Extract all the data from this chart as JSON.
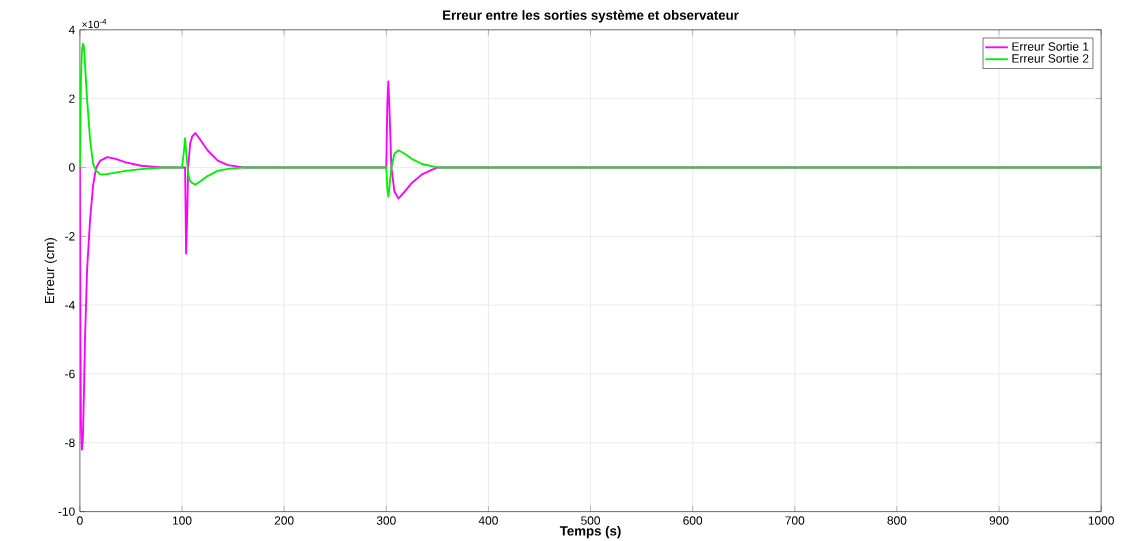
{
  "chart_data": {
    "type": "line",
    "title": "Erreur entre les sorties système et observateur",
    "xlabel": "Temps (s)",
    "ylabel": "Erreur (cm)",
    "annotations": [
      "×10$^{-4}$"
    ],
    "xlim": [
      0,
      1000
    ],
    "ylim": [
      -10,
      4
    ],
    "xticks": [
      0,
      100,
      200,
      300,
      400,
      500,
      600,
      700,
      800,
      900,
      1000
    ],
    "yticks": [
      -10,
      -8,
      -6,
      -4,
      -2,
      0,
      2,
      4
    ],
    "grid": true,
    "legend": "top right",
    "series": [
      {
        "name": "Erreur Sortie 1",
        "color": "#ff00ff",
        "x": [
          0,
          0.5,
          1,
          2,
          3,
          4,
          5,
          7,
          10,
          13,
          16,
          20,
          27,
          35,
          45,
          60,
          80,
          100,
          103,
          104,
          105,
          106,
          108,
          110,
          113,
          118,
          125,
          135,
          145,
          160,
          200,
          300,
          301,
          302,
          303,
          305,
          308,
          312,
          318,
          325,
          335,
          350,
          400,
          1000
        ],
        "values": [
          0,
          -5,
          -7.5,
          -8.2,
          -7.8,
          -6.5,
          -5,
          -3,
          -1.5,
          -0.5,
          0,
          0.2,
          0.3,
          0.25,
          0.15,
          0.05,
          0,
          0,
          0,
          -2.5,
          -1.5,
          0,
          0.7,
          0.9,
          1.0,
          0.8,
          0.5,
          0.2,
          0.07,
          0,
          0,
          0,
          1.8,
          2.5,
          1.8,
          0,
          -0.7,
          -0.9,
          -0.7,
          -0.45,
          -0.2,
          0,
          0,
          0
        ]
      },
      {
        "name": "Erreur Sortie 2",
        "color": "#00ee00",
        "x": [
          0,
          1,
          2,
          3,
          4,
          5,
          7,
          10,
          13,
          16,
          20,
          25,
          35,
          45,
          60,
          80,
          100,
          102,
          103,
          104,
          106,
          108,
          110,
          113,
          118,
          125,
          135,
          145,
          160,
          200,
          300,
          301,
          302,
          303,
          305,
          308,
          312,
          318,
          325,
          335,
          350,
          400,
          1000
        ],
        "values": [
          0,
          2.5,
          3.4,
          3.6,
          3.5,
          3,
          2,
          0.8,
          0.1,
          -0.1,
          -0.2,
          -0.2,
          -0.15,
          -0.1,
          -0.05,
          0,
          0,
          0.5,
          0.85,
          0.5,
          -0.2,
          -0.4,
          -0.45,
          -0.5,
          -0.4,
          -0.25,
          -0.1,
          -0.04,
          0,
          0,
          0,
          -0.6,
          -0.85,
          -0.6,
          0,
          0.4,
          0.5,
          0.4,
          0.25,
          0.1,
          0,
          0,
          0
        ]
      }
    ]
  }
}
